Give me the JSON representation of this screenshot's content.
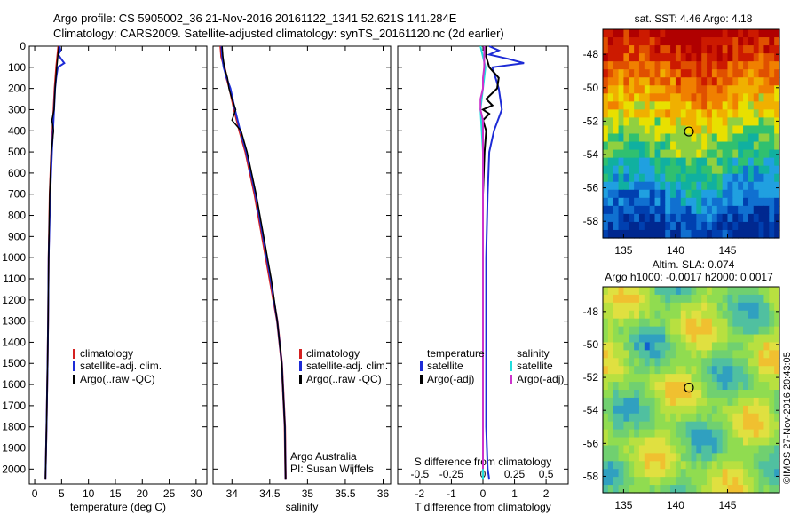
{
  "header": {
    "line1": "Argo profile: CS 5905002_36 21-Nov-2016 20161122_1341 52.621S 141.284E",
    "line2": "Climatology: CARS2009. Satellite-adjusted climatology: synTS_20161120.nc (2d earlier)"
  },
  "colors": {
    "climatology": "#d42020",
    "satellite": "#1d2bd6",
    "argo": "#000000",
    "sal_satellite": "#22dddd",
    "sal_argo": "#cc33cc"
  },
  "chart_data": [
    {
      "type": "line",
      "panel": "temperature",
      "xlabel": "temperature (deg C)",
      "ylabel": "",
      "xlim": [
        -1,
        32
      ],
      "ylim": [
        2070,
        0
      ],
      "xticks": [
        0,
        5,
        10,
        15,
        20,
        25,
        30
      ],
      "yticks": [
        0,
        100,
        200,
        300,
        400,
        500,
        600,
        700,
        800,
        900,
        1000,
        1100,
        1200,
        1300,
        1400,
        1500,
        1600,
        1700,
        1800,
        1900,
        2000
      ],
      "legend": [
        "climatology",
        "satellite-adj. clim.",
        "Argo(..raw -QC)"
      ],
      "series": [
        {
          "name": "climatology",
          "depth": [
            0,
            50,
            100,
            200,
            300,
            400,
            500,
            700,
            1000,
            1300,
            1500,
            1800,
            2050
          ],
          "values": [
            4.4,
            4.2,
            4.0,
            3.7,
            3.5,
            3.3,
            3.1,
            2.8,
            2.6,
            2.5,
            2.4,
            2.2,
            2.0
          ]
        },
        {
          "name": "satellite-adj. clim.",
          "depth": [
            0,
            20,
            40,
            60,
            80,
            100,
            150,
            200,
            300,
            400,
            500,
            700,
            1000,
            1300,
            1500,
            1800,
            2050
          ],
          "values": [
            4.6,
            4.8,
            4.4,
            4.9,
            5.5,
            4.3,
            4.0,
            3.8,
            3.6,
            3.4,
            3.2,
            2.9,
            2.6,
            2.5,
            2.4,
            2.2,
            2.0
          ]
        },
        {
          "name": "Argo(..raw -QC)",
          "depth": [
            0,
            50,
            100,
            200,
            300,
            350,
            400,
            500,
            700,
            1000,
            1300,
            1500,
            1800,
            2050
          ],
          "values": [
            4.5,
            4.3,
            4.1,
            3.8,
            3.6,
            3.2,
            3.5,
            3.1,
            2.8,
            2.6,
            2.5,
            2.4,
            2.2,
            2.0
          ]
        }
      ]
    },
    {
      "type": "line",
      "panel": "salinity",
      "xlabel": "salinity",
      "xlim": [
        33.75,
        36.1
      ],
      "ylim": [
        2070,
        0
      ],
      "xticks": [
        34,
        34.5,
        35,
        35.5,
        36
      ],
      "legend": [
        "climatology",
        "satellite-adj. clim.",
        "Argo(..raw -QC)"
      ],
      "series": [
        {
          "name": "climatology",
          "depth": [
            0,
            50,
            100,
            150,
            200,
            300,
            400,
            500,
            700,
            900,
            1100,
            1300,
            1500,
            1800,
            2050
          ],
          "values": [
            33.85,
            33.86,
            33.9,
            33.93,
            33.97,
            34.03,
            34.1,
            34.18,
            34.3,
            34.4,
            34.5,
            34.6,
            34.66,
            34.7,
            34.71
          ]
        },
        {
          "name": "satellite-adj. clim.",
          "depth": [
            0,
            50,
            100,
            150,
            200,
            300,
            400,
            500,
            700,
            900,
            1100,
            1300,
            1500,
            1800,
            2050
          ],
          "values": [
            33.86,
            33.87,
            33.89,
            33.93,
            33.98,
            34.04,
            34.11,
            34.19,
            34.31,
            34.41,
            34.51,
            34.6,
            34.66,
            34.7,
            34.71
          ]
        },
        {
          "name": "Argo(..raw -QC)",
          "depth": [
            0,
            50,
            100,
            150,
            200,
            250,
            300,
            350,
            400,
            500,
            700,
            900,
            1100,
            1300,
            1500,
            1800,
            2050
          ],
          "values": [
            33.87,
            33.88,
            33.9,
            33.94,
            33.96,
            34.0,
            34.05,
            34.0,
            34.12,
            34.2,
            34.32,
            34.42,
            34.52,
            34.6,
            34.66,
            34.7,
            34.71
          ]
        }
      ],
      "annotations": [
        "Argo Australia",
        "PI: Susan Wijffels"
      ]
    },
    {
      "type": "line",
      "panel": "difference",
      "xlabel": "T difference from climatology",
      "x2label": "S difference from climatology",
      "xlim": [
        -2.7,
        2.7
      ],
      "x2lim": [
        -0.675,
        0.675
      ],
      "ylim": [
        2070,
        0
      ],
      "xticks": [
        -2,
        -1,
        0,
        1,
        2
      ],
      "x2ticks": [
        -0.5,
        -0.25,
        0,
        0.25,
        0.5
      ],
      "legend_groups": [
        {
          "title": "temperature",
          "items": [
            "satellite",
            "Argo(-adj)"
          ]
        },
        {
          "title": "salinity",
          "items": [
            "satellite",
            "Argo(-adj)"
          ]
        }
      ],
      "series": [
        {
          "name": "temperature satellite",
          "depth": [
            0,
            20,
            40,
            60,
            80,
            100,
            150,
            200,
            300,
            400,
            500,
            700,
            1000,
            1300,
            1500,
            1800,
            2000,
            2050
          ],
          "values": [
            0.2,
            0.5,
            0.2,
            0.8,
            1.3,
            0.3,
            0.4,
            0.5,
            0.6,
            0.35,
            0.2,
            0.15,
            0.1,
            0.1,
            0.1,
            0.1,
            0.15,
            0.2
          ]
        },
        {
          "name": "temperature Argo(-adj)",
          "depth": [
            0,
            50,
            100,
            150,
            200,
            250,
            280,
            300,
            320,
            350,
            400,
            500,
            700,
            1000,
            1500,
            2000
          ],
          "values": [
            0.1,
            0.1,
            0.2,
            0.5,
            0.45,
            0.1,
            0.3,
            0.0,
            0.2,
            0.0,
            0.1,
            0.05,
            0.0,
            0.0,
            0.0,
            0.0
          ]
        },
        {
          "name": "salinity satellite",
          "depth": [
            0,
            50,
            100,
            200,
            300,
            400,
            500,
            700,
            1000,
            1300,
            1500,
            1800,
            2050
          ],
          "values": [
            -0.02,
            0.0,
            0.02,
            0.0,
            -0.02,
            -0.01,
            0.0,
            0.0,
            0.0,
            0.0,
            0.0,
            0.0,
            0.0
          ]
        },
        {
          "name": "salinity Argo(-adj)",
          "depth": [
            0,
            50,
            100,
            150,
            200,
            250,
            300,
            350,
            400,
            500,
            700,
            1000,
            1500,
            2000
          ],
          "values": [
            0.01,
            0.01,
            0.01,
            0.0,
            0.0,
            -0.02,
            -0.02,
            0.0,
            0.0,
            0.0,
            0.0,
            0.0,
            0.0,
            0.0
          ]
        }
      ]
    },
    {
      "type": "heatmap",
      "panel": "sst-map",
      "title": "sat. SST: 4.46 Argo: 4.18",
      "xlim": [
        133,
        150
      ],
      "ylim": [
        -59,
        -46.5
      ],
      "xticks": [
        135,
        140,
        145
      ],
      "yticks": [
        -48,
        -50,
        -52,
        -54,
        -56,
        -58
      ],
      "marker": {
        "lon": 141.284,
        "lat": -52.621
      }
    },
    {
      "type": "heatmap",
      "panel": "sla-map",
      "title": "Altim. SLA: 0.074",
      "subtitle": "Argo h1000: -0.0017 h2000: 0.0017",
      "xlim": [
        133,
        150
      ],
      "ylim": [
        -59,
        -46.5
      ],
      "xticks": [
        135,
        140,
        145
      ],
      "yticks": [
        -48,
        -50,
        -52,
        -54,
        -56,
        -58
      ],
      "marker": {
        "lon": 141.284,
        "lat": -52.621
      }
    }
  ],
  "labels": {
    "legend_temperature": "temperature",
    "legend_salinity": "salinity",
    "clim": "climatology",
    "sat_adj": "satellite-adj. clim.",
    "argo_raw": "Argo(..raw -QC)",
    "satellite": "satellite",
    "argo_adj": "Argo(-adj)",
    "credit": "©IMOS 27-Nov-2016 20:43:05"
  }
}
